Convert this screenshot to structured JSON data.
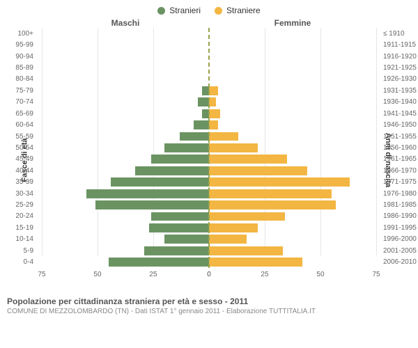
{
  "legend": {
    "male": {
      "label": "Stranieri",
      "color": "#6b9362"
    },
    "female": {
      "label": "Straniere",
      "color": "#f3b643"
    }
  },
  "headers": {
    "left": "Maschi",
    "right": "Femmine"
  },
  "axis_labels": {
    "left": "Fasce di età",
    "right": "Anni di nascita"
  },
  "x_axis": {
    "max": 75,
    "ticks_left": [
      75,
      50,
      25,
      0
    ],
    "ticks_right": [
      0,
      25,
      50,
      75
    ]
  },
  "chart": {
    "type": "population-pyramid",
    "male_color": "#6b9362",
    "female_color": "#f3b643",
    "grid_color": "#e6e6e6",
    "center_line_color": "#9ca24a",
    "background_color": "#ffffff",
    "rows": [
      {
        "age": "100+",
        "year": "≤ 1910",
        "m": 0,
        "f": 0
      },
      {
        "age": "95-99",
        "year": "1911-1915",
        "m": 0,
        "f": 0
      },
      {
        "age": "90-94",
        "year": "1916-1920",
        "m": 0,
        "f": 0
      },
      {
        "age": "85-89",
        "year": "1921-1925",
        "m": 0,
        "f": 0
      },
      {
        "age": "80-84",
        "year": "1926-1930",
        "m": 0,
        "f": 0
      },
      {
        "age": "75-79",
        "year": "1931-1935",
        "m": 3,
        "f": 4
      },
      {
        "age": "70-74",
        "year": "1936-1940",
        "m": 5,
        "f": 3
      },
      {
        "age": "65-69",
        "year": "1941-1945",
        "m": 3,
        "f": 5
      },
      {
        "age": "60-64",
        "year": "1946-1950",
        "m": 7,
        "f": 4
      },
      {
        "age": "55-59",
        "year": "1951-1955",
        "m": 13,
        "f": 13
      },
      {
        "age": "50-54",
        "year": "1956-1960",
        "m": 20,
        "f": 22
      },
      {
        "age": "45-49",
        "year": "1961-1965",
        "m": 26,
        "f": 35
      },
      {
        "age": "40-44",
        "year": "1966-1970",
        "m": 33,
        "f": 44
      },
      {
        "age": "35-39",
        "year": "1971-1975",
        "m": 44,
        "f": 63
      },
      {
        "age": "30-34",
        "year": "1976-1980",
        "m": 55,
        "f": 55
      },
      {
        "age": "25-29",
        "year": "1981-1985",
        "m": 51,
        "f": 57
      },
      {
        "age": "20-24",
        "year": "1986-1990",
        "m": 26,
        "f": 34
      },
      {
        "age": "15-19",
        "year": "1991-1995",
        "m": 27,
        "f": 22
      },
      {
        "age": "10-14",
        "year": "1996-2000",
        "m": 20,
        "f": 17
      },
      {
        "age": "5-9",
        "year": "2001-2005",
        "m": 29,
        "f": 33
      },
      {
        "age": "0-4",
        "year": "2006-2010",
        "m": 45,
        "f": 42
      }
    ]
  },
  "footer": {
    "line1": "Popolazione per cittadinanza straniera per età e sesso - 2011",
    "line2": "COMUNE DI MEZZOLOMBARDO (TN) - Dati ISTAT 1° gennaio 2011 - Elaborazione TUTTITALIA.IT"
  }
}
